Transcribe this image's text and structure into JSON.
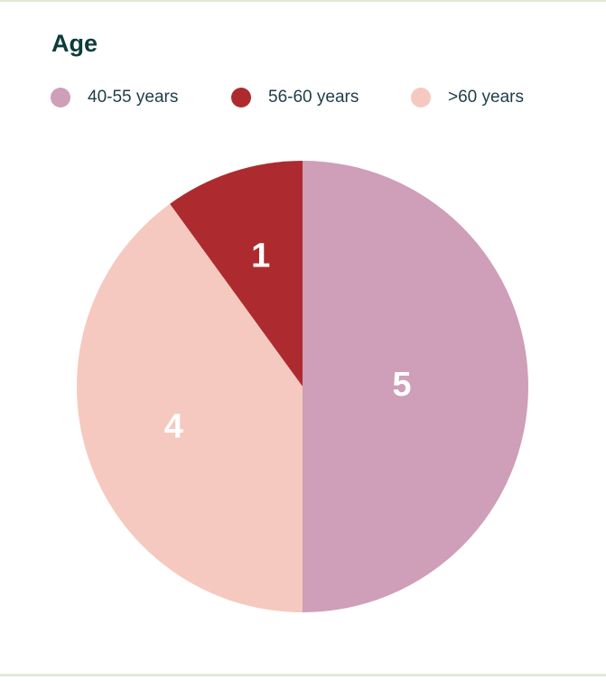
{
  "chart_data": {
    "type": "pie",
    "title": "Age",
    "categories": [
      "40-55 years",
      "56-60 years",
      ">60 years"
    ],
    "values": [
      5,
      1,
      4
    ],
    "colors": [
      "#cf9eb8",
      "#ad2b2e",
      "#f5c9bf"
    ],
    "legend": "top"
  }
}
